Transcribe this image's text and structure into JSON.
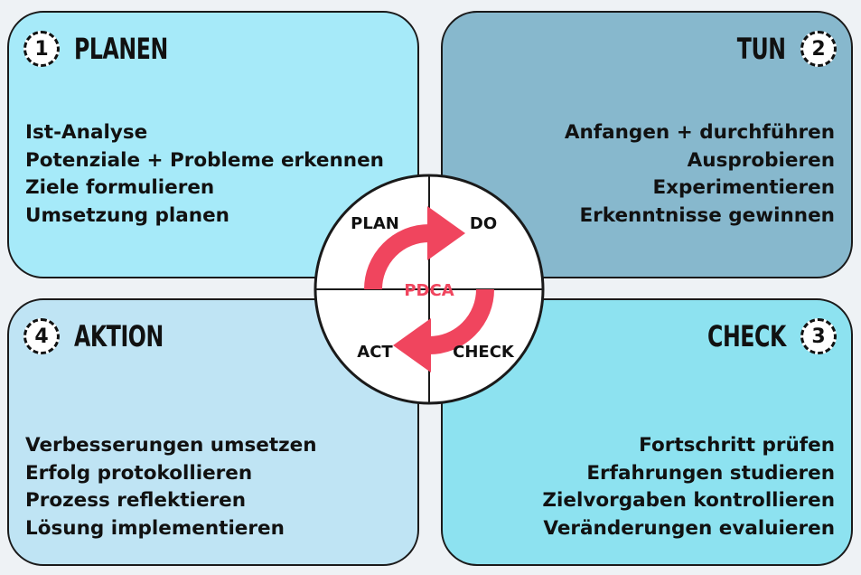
{
  "quadrants": {
    "plan": {
      "number": "1",
      "title": "PLANEN",
      "items": [
        "Ist-Analyse",
        "Potenziale + Probleme erkennen",
        "Ziele formulieren",
        "Umsetzung planen"
      ]
    },
    "do": {
      "number": "2",
      "title": "TUN",
      "items": [
        "Anfangen + durchführen",
        "Ausprobieren",
        "Experimentieren",
        "Erkenntnisse gewinnen"
      ]
    },
    "act": {
      "number": "4",
      "title": "AKTION",
      "items": [
        "Verbesserungen umsetzen",
        "Erfolg protokollieren",
        "Prozess reflektieren",
        "Lösung implementieren"
      ]
    },
    "check": {
      "number": "3",
      "title": "CHECK",
      "items": [
        "Fortschritt prüfen",
        "Erfahrungen studieren",
        "Zielvorgaben kontrollieren",
        "Veränderungen evaluieren"
      ]
    }
  },
  "cycle": {
    "center_label": "PDCA",
    "plan_label": "PLAN",
    "do_label": "DO",
    "check_label": "CHECK",
    "act_label": "ACT",
    "accent_color": "#f0455e"
  },
  "colors": {
    "plan": "#a6eaf9",
    "do": "#87b8cd",
    "act": "#bfe4f4",
    "check": "#8de2f0"
  }
}
